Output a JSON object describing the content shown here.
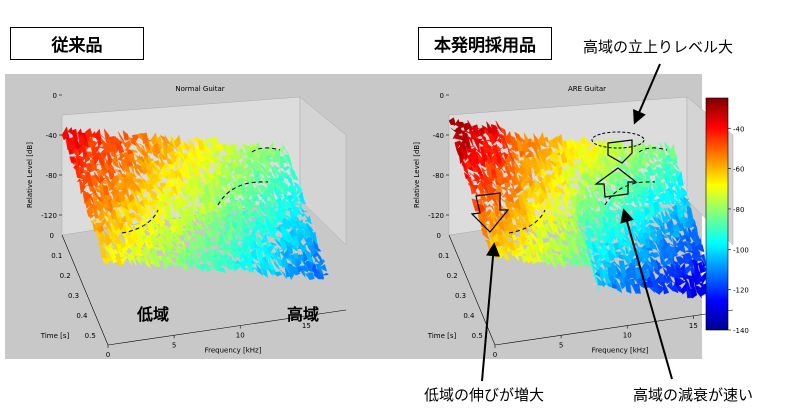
{
  "labels": {
    "conventional": "従来品",
    "invention": "本発明採用品",
    "low_band": "低域",
    "high_band": "高域",
    "note_high_rise": "高域の立上りレベル大",
    "note_low_extend": "低域の伸びが増大",
    "note_high_decay": "高域の減衰が速い"
  },
  "chart_data": [
    {
      "type": "waterfall-3d",
      "title": "Normal Guitar",
      "xlabel": "Frequency [kHz]",
      "ylabel": "Time [s]",
      "zlabel": "Relative Level [dB]",
      "x_ticks": [
        "0",
        "5",
        "10",
        "15"
      ],
      "y_ticks": [
        "0",
        "0.1",
        "0.2",
        "0.3",
        "0.4",
        "0.5"
      ],
      "z_ticks": [
        "-120",
        "-80",
        "-40",
        "0"
      ],
      "xlim": [
        0,
        18
      ],
      "ylim": [
        0,
        0.55
      ],
      "zlim": [
        -140,
        0
      ]
    },
    {
      "type": "waterfall-3d",
      "title": "ARE Guitar",
      "xlabel": "Frequency [kHz]",
      "ylabel": "Time [s]",
      "zlabel": "Relative Level [dB]",
      "x_ticks": [
        "0",
        "5",
        "10",
        "15"
      ],
      "y_ticks": [
        "0",
        "0.1",
        "0.2",
        "0.3",
        "0.4",
        "0.5"
      ],
      "z_ticks": [
        "-120",
        "-80",
        "-40",
        "0"
      ],
      "xlim": [
        0,
        18
      ],
      "ylim": [
        0,
        0.55
      ],
      "zlim": [
        -140,
        0
      ],
      "colorbar_ticks": [
        -40,
        -60,
        -80,
        -100,
        -120,
        -140
      ],
      "colorbar_range": [
        -140,
        -25
      ]
    }
  ]
}
